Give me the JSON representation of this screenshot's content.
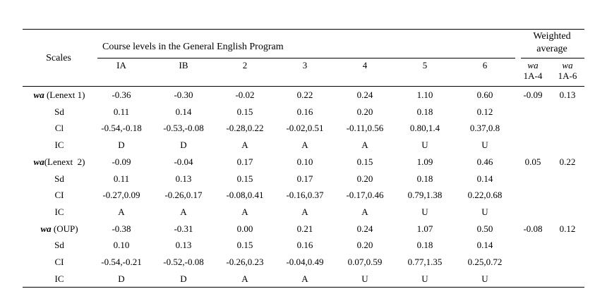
{
  "header": {
    "scales": "Scales",
    "course_levels": "Course levels in the General English Program",
    "weighted_line1": "Weighted",
    "weighted_line2": "average",
    "levels": [
      "IA",
      "IB",
      "2",
      "3",
      "4",
      "5",
      "6"
    ],
    "wa_label": "wa",
    "wa_sub1": "1A-4",
    "wa_sub2": "1A-6"
  },
  "groups": [
    {
      "wa_prefix": "wa",
      "label_rest": " (Lenext 1)",
      "wa_values": [
        "-0.36",
        "-0.30",
        "-0.02",
        "0.22",
        "0.24",
        "1.10",
        "0.60"
      ],
      "avg_1a4": "-0.09",
      "avg_1a6": "0.13",
      "sd_label": "Sd",
      "sd_values": [
        "0.11",
        "0.14",
        "0.15",
        "0.16",
        "0.20",
        "0.18",
        "0.12"
      ],
      "ci_label": "Cl",
      "ci_values": [
        "-0.54,-0.18",
        "-0.53,-0.08",
        "-0.28,0.22",
        "-0.02,0.51",
        "-0.11,0.56",
        "0.80,1.4",
        "0.37,0.8"
      ],
      "ic_label": "IC",
      "ic_values": [
        "D",
        "D",
        "A",
        "A",
        "A",
        "U",
        "U"
      ]
    },
    {
      "wa_prefix": "wa",
      "label_rest": "(Lenext  2)",
      "wa_values": [
        "-0.09",
        "-0.04",
        "0.17",
        "0.10",
        "0.15",
        "1.09",
        "0.46"
      ],
      "avg_1a4": "0.05",
      "avg_1a6": "0.22",
      "sd_label": "Sd",
      "sd_values": [
        "0.11",
        "0.13",
        "0.15",
        "0.17",
        "0.20",
        "0.18",
        "0.14"
      ],
      "ci_label": "CI",
      "ci_values": [
        "-0.27,0.09",
        "-0.26,0.17",
        "-0.08,0.41",
        "-0.16,0.37",
        "-0.17,0.46",
        "0.79,1.38",
        "0.22,0.68"
      ],
      "ic_label": "IC",
      "ic_values": [
        "A",
        "A",
        "A",
        "A",
        "A",
        "U",
        "U"
      ]
    },
    {
      "wa_prefix": "wa",
      "label_rest": " (OUP)",
      "wa_values": [
        "-0.38",
        "-0.31",
        "0.00",
        "0.21",
        "0.24",
        "1.07",
        "0.50"
      ],
      "avg_1a4": "-0.08",
      "avg_1a6": "0.12",
      "sd_label": "Sd",
      "sd_values": [
        "0.10",
        "0.13",
        "0.15",
        "0.16",
        "0.20",
        "0.18",
        "0.14"
      ],
      "ci_label": "CI",
      "ci_values": [
        "-0.54,-0.21",
        "-0.52,-0.08",
        "-0.26,0.23",
        "-0.04,0.49",
        "0.07,0.59",
        "0.77,1.35",
        "0.25,0.72"
      ],
      "ic_label": "IC",
      "ic_values": [
        "D",
        "D",
        "A",
        "A",
        "U",
        "U",
        "U"
      ]
    }
  ]
}
